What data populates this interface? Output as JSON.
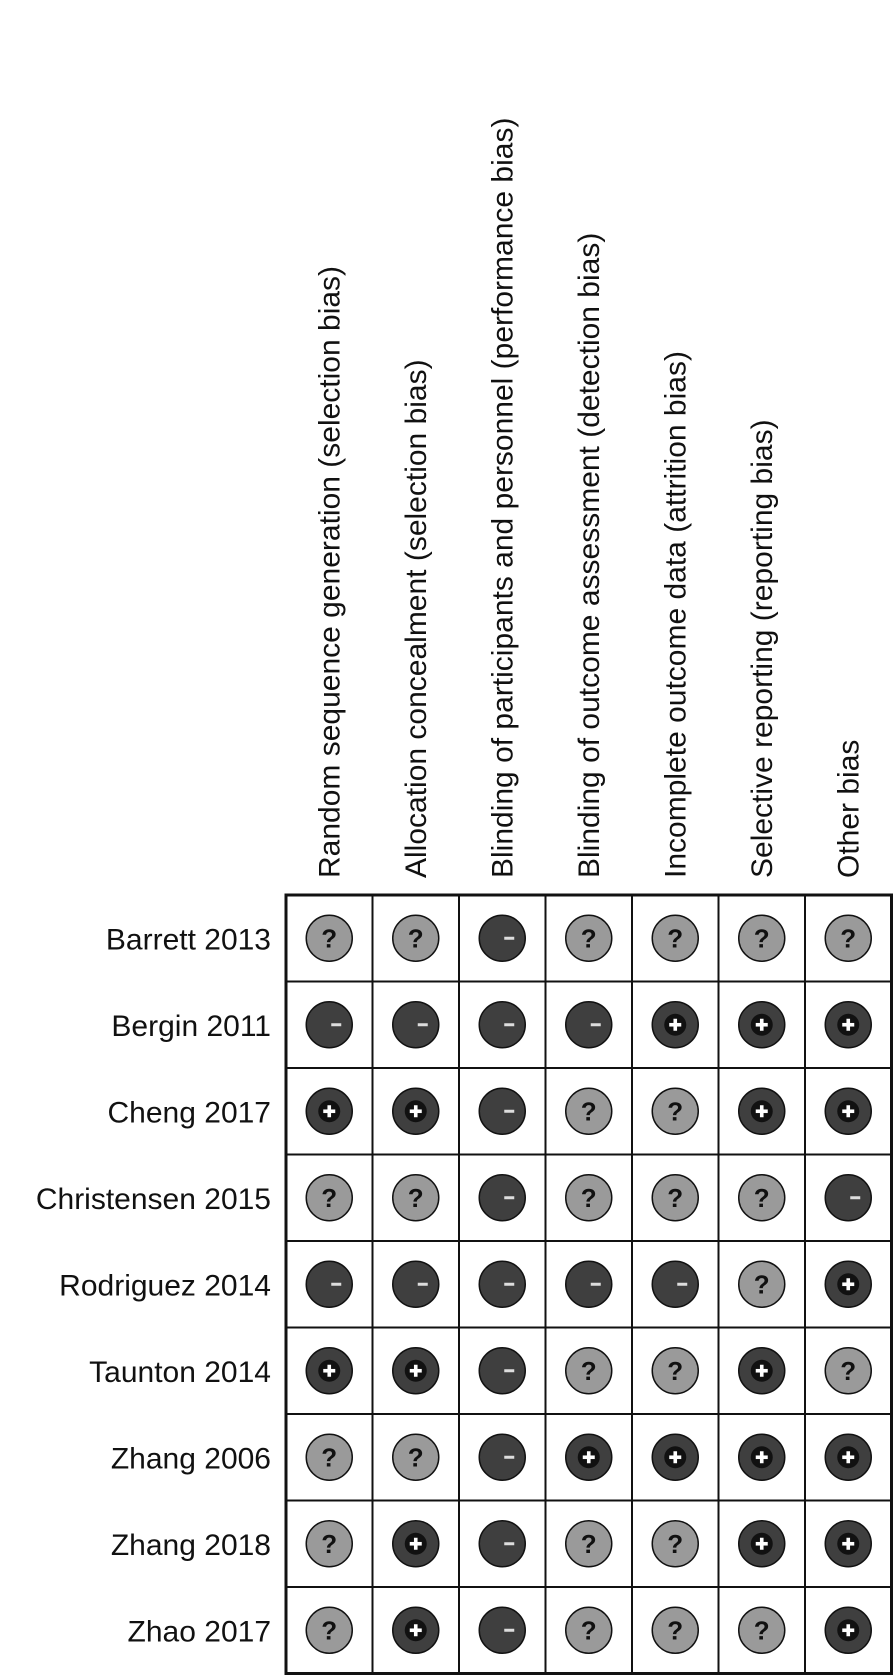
{
  "chart_data": {
    "type": "table",
    "domains": [
      "Random sequence generation (selection bias)",
      "Allocation concealment (selection bias)",
      "Blinding of participants and personnel (performance bias)",
      "Blinding of outcome assessment (detection bias)",
      "Incomplete outcome data (attrition bias)",
      "Selective reporting (reporting bias)",
      "Other bias"
    ],
    "studies": [
      "Barrett 2013",
      "Bergin 2011",
      "Cheng 2017",
      "Christensen 2015",
      "Rodriguez 2014",
      "Taunton 2014",
      "Zhang 2006",
      "Zhang 2018",
      "Zhao 2017"
    ],
    "judgements": [
      [
        "unclear",
        "unclear",
        "high",
        "unclear",
        "unclear",
        "unclear",
        "unclear"
      ],
      [
        "high",
        "high",
        "high",
        "high",
        "low",
        "low",
        "low"
      ],
      [
        "low",
        "low",
        "high",
        "unclear",
        "unclear",
        "low",
        "low"
      ],
      [
        "unclear",
        "unclear",
        "high",
        "unclear",
        "unclear",
        "unclear",
        "high"
      ],
      [
        "high",
        "high",
        "high",
        "high",
        "high",
        "unclear",
        "low"
      ],
      [
        "low",
        "low",
        "high",
        "unclear",
        "unclear",
        "low",
        "unclear"
      ],
      [
        "unclear",
        "unclear",
        "high",
        "low",
        "low",
        "low",
        "low"
      ],
      [
        "unclear",
        "low",
        "high",
        "unclear",
        "unclear",
        "low",
        "low"
      ],
      [
        "unclear",
        "low",
        "high",
        "unclear",
        "unclear",
        "unclear",
        "low"
      ]
    ],
    "symbols": {
      "low": "+",
      "high": "−",
      "unclear": "?"
    },
    "colors": {
      "low": "#3f3f3f",
      "high": "#3f3f3f",
      "unclear": "#9a9a9a",
      "symbol_dark": "#111111",
      "symbol_light": "#dddddd"
    }
  }
}
